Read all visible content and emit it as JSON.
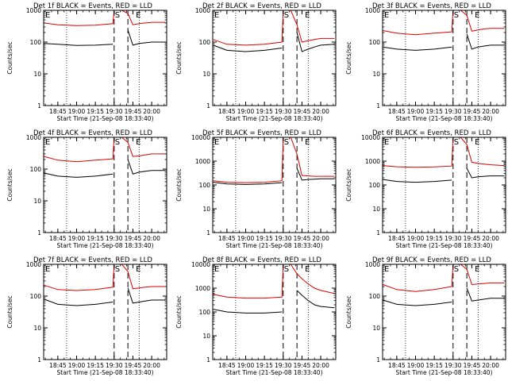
{
  "figure": {
    "xtick_labels": [
      "18:45",
      "19:00",
      "19:15",
      "19:30",
      "19:45",
      "20:00"
    ],
    "ytick_labels": [
      "1",
      "10",
      "100",
      "1000",
      "10000"
    ]
  },
  "colors": {
    "events": "#000000",
    "lld": "#e00000",
    "axes": "#000000",
    "background": "#ffffff"
  },
  "chart_data": [
    {
      "type": "line",
      "title": "Det 1f BLACK = Events, RED = LLD",
      "xlabel": "Start Time (21-Sep-08 18:33:40)",
      "ylabel": "Counts/sec",
      "ylim": [
        1,
        1000
      ],
      "yscale": "log",
      "xlim": [
        "18:33:40",
        "20:12:00"
      ],
      "x": [
        "18:34",
        "18:45",
        "19:00",
        "19:15",
        "19:29",
        "19:30",
        "19:36",
        "19:41",
        "19:45",
        "19:50",
        "19:55",
        "20:00",
        "20:11"
      ],
      "series": [
        {
          "name": "BLACK = Events",
          "values": [
            90,
            85,
            78,
            80,
            85,
            null,
            null,
            240,
            80,
            90,
            95,
            100,
            100
          ]
        },
        {
          "name": "RED = LLD",
          "values": [
            400,
            350,
            330,
            340,
            380,
            1000,
            1000,
            800,
            350,
            380,
            400,
            420,
            420
          ]
        }
      ],
      "markers": {
        "E_left": "E",
        "S": "S",
        "E_right": "E"
      },
      "dashed_lines_at": [
        "19:30",
        "19:41"
      ],
      "dotted_lines_at": [
        "18:52",
        "19:50"
      ]
    },
    {
      "type": "line",
      "title": "Det 2f BLACK = Events, RED = LLD",
      "xlabel": "Start Time (21-Sep-08 18:33:40)",
      "ylabel": "Counts/sec",
      "ylim": [
        1,
        1000
      ],
      "yscale": "log",
      "xlim": [
        "18:33:40",
        "20:12:00"
      ],
      "x": [
        "18:34",
        "18:45",
        "19:00",
        "19:15",
        "19:29",
        "19:30",
        "19:36",
        "19:41",
        "19:45",
        "19:50",
        "19:55",
        "20:00",
        "20:11"
      ],
      "series": [
        {
          "name": "BLACK = Events",
          "values": [
            80,
            55,
            50,
            55,
            65,
            null,
            null,
            200,
            50,
            60,
            70,
            80,
            85
          ]
        },
        {
          "name": "RED = LLD",
          "values": [
            120,
            85,
            80,
            85,
            100,
            1000,
            1000,
            350,
            100,
            110,
            120,
            130,
            130
          ]
        }
      ],
      "markers": {
        "E_left": "E",
        "S": "S",
        "E_right": "E"
      },
      "dashed_lines_at": [
        "19:30",
        "19:41"
      ],
      "dotted_lines_at": [
        "18:52",
        "19:50"
      ]
    },
    {
      "type": "line",
      "title": "Det 3f BLACK = Events, RED = LLD",
      "xlabel": "Start Time (21-Sep-08 18:33:40)",
      "ylabel": "Counts/sec",
      "ylim": [
        1,
        1000
      ],
      "yscale": "log",
      "xlim": [
        "18:33:40",
        "20:12:00"
      ],
      "x": [
        "18:34",
        "18:45",
        "19:00",
        "19:15",
        "19:29",
        "19:30",
        "19:36",
        "19:41",
        "19:45",
        "19:50",
        "19:55",
        "20:00",
        "20:11"
      ],
      "series": [
        {
          "name": "BLACK = Events",
          "values": [
            70,
            60,
            55,
            60,
            70,
            null,
            null,
            180,
            60,
            70,
            75,
            80,
            80
          ]
        },
        {
          "name": "RED = LLD",
          "values": [
            230,
            190,
            170,
            190,
            210,
            1000,
            1000,
            700,
            220,
            240,
            260,
            270,
            270
          ]
        }
      ],
      "markers": {
        "E_left": "E",
        "S": "S",
        "E_right": "E"
      },
      "dashed_lines_at": [
        "19:30",
        "19:41"
      ],
      "dotted_lines_at": [
        "18:52",
        "19:50"
      ]
    },
    {
      "type": "line",
      "title": "Det 4f BLACK = Events, RED = LLD",
      "xlabel": "Start Time (21-Sep-08 18:33:40)",
      "ylabel": "Counts/sec",
      "ylim": [
        1,
        1000
      ],
      "yscale": "log",
      "xlim": [
        "18:33:40",
        "20:12:00"
      ],
      "x": [
        "18:34",
        "18:45",
        "19:00",
        "19:15",
        "19:29",
        "19:30",
        "19:36",
        "19:41",
        "19:45",
        "19:50",
        "19:55",
        "20:00",
        "20:11"
      ],
      "series": [
        {
          "name": "BLACK = Events",
          "values": [
            75,
            60,
            55,
            60,
            70,
            null,
            null,
            200,
            70,
            80,
            85,
            90,
            90
          ]
        },
        {
          "name": "RED = LLD",
          "values": [
            250,
            190,
            170,
            190,
            210,
            1000,
            1000,
            700,
            250,
            260,
            280,
            300,
            300
          ]
        }
      ],
      "markers": {
        "E_left": "E",
        "S": "S",
        "E_right": "E"
      },
      "dashed_lines_at": [
        "19:30",
        "19:41"
      ],
      "dotted_lines_at": [
        "18:52",
        "19:50"
      ]
    },
    {
      "type": "line",
      "title": "Det 5f BLACK = Events, RED = LLD",
      "xlabel": "Start Time (21-Sep-08 18:33:40)",
      "ylabel": "Counts/sec",
      "ylim": [
        1,
        10000
      ],
      "yscale": "log",
      "xlim": [
        "18:33:40",
        "20:12:00"
      ],
      "x": [
        "18:34",
        "18:45",
        "19:00",
        "19:15",
        "19:29",
        "19:30",
        "19:36",
        "19:41",
        "19:45",
        "19:50",
        "19:55",
        "20:00",
        "20:11"
      ],
      "series": [
        {
          "name": "BLACK = Events",
          "values": [
            130,
            110,
            105,
            110,
            125,
            null,
            null,
            500,
            160,
            170,
            175,
            180,
            180
          ]
        },
        {
          "name": "RED = LLD",
          "values": [
            150,
            130,
            125,
            130,
            150,
            10000,
            10000,
            2000,
            250,
            240,
            230,
            230,
            230
          ]
        }
      ],
      "markers": {
        "E_left": "E",
        "S": "S",
        "E_right": "E"
      },
      "dashed_lines_at": [
        "19:30",
        "19:41"
      ],
      "dotted_lines_at": [
        "18:52",
        "19:50"
      ]
    },
    {
      "type": "line",
      "title": "Det 6f BLACK = Events, RED = LLD",
      "xlabel": "Start Time (21-Sep-08 18:33:40)",
      "ylabel": "Counts/sec",
      "ylim": [
        1,
        10000
      ],
      "yscale": "log",
      "xlim": [
        "18:33:40",
        "20:12:00"
      ],
      "x": [
        "18:34",
        "18:45",
        "19:00",
        "19:15",
        "19:29",
        "19:30",
        "19:36",
        "19:41",
        "19:45",
        "19:50",
        "19:55",
        "20:00",
        "20:11"
      ],
      "series": [
        {
          "name": "BLACK = Events",
          "values": [
            170,
            140,
            130,
            140,
            160,
            null,
            null,
            500,
            200,
            220,
            230,
            240,
            240
          ]
        },
        {
          "name": "RED = LLD",
          "values": [
            650,
            580,
            550,
            570,
            620,
            10000,
            10000,
            5000,
            900,
            800,
            750,
            700,
            650
          ]
        }
      ],
      "markers": {
        "E_left": "E",
        "S": "S",
        "E_right": "E"
      },
      "dashed_lines_at": [
        "19:30",
        "19:41"
      ],
      "dotted_lines_at": [
        "18:52",
        "19:50"
      ]
    },
    {
      "type": "line",
      "title": "Det 7f BLACK = Events, RED = LLD",
      "xlabel": "Start Time (21-Sep-08 18:33:40)",
      "ylabel": "Counts/sec",
      "ylim": [
        1,
        1000
      ],
      "yscale": "log",
      "xlim": [
        "18:33:40",
        "20:12:00"
      ],
      "x": [
        "18:34",
        "18:45",
        "19:00",
        "19:15",
        "19:29",
        "19:30",
        "19:36",
        "19:41",
        "19:45",
        "19:50",
        "19:55",
        "20:00",
        "20:11"
      ],
      "series": [
        {
          "name": "BLACK = Events",
          "values": [
            80,
            55,
            50,
            55,
            65,
            null,
            null,
            180,
            60,
            65,
            70,
            75,
            75
          ]
        },
        {
          "name": "RED = LLD",
          "values": [
            220,
            160,
            150,
            160,
            190,
            1000,
            1000,
            600,
            170,
            180,
            190,
            200,
            200
          ]
        }
      ],
      "markers": {
        "E_left": "E",
        "S": "S",
        "E_right": "E"
      },
      "dashed_lines_at": [
        "19:30",
        "19:41"
      ],
      "dotted_lines_at": [
        "18:52",
        "19:50"
      ]
    },
    {
      "type": "line",
      "title": "Det 8f BLACK = Events, RED = LLD",
      "xlabel": "Start Time (21-Sep-08 18:33:40)",
      "ylabel": "Counts/sec",
      "ylim": [
        1,
        10000
      ],
      "yscale": "log",
      "xlim": [
        "18:33:40",
        "20:12:00"
      ],
      "x": [
        "18:34",
        "18:45",
        "19:00",
        "19:15",
        "19:29",
        "19:30",
        "19:36",
        "19:41",
        "19:45",
        "19:50",
        "19:55",
        "20:00",
        "20:11"
      ],
      "series": [
        {
          "name": "BLACK = Events",
          "values": [
            130,
            100,
            90,
            90,
            100,
            null,
            null,
            800,
            500,
            300,
            200,
            170,
            150
          ]
        },
        {
          "name": "RED = LLD",
          "values": [
            550,
            420,
            380,
            380,
            420,
            10000,
            10000,
            4000,
            2500,
            1500,
            1000,
            800,
            600
          ]
        }
      ],
      "markers": {
        "E_left": "E",
        "S": "S",
        "E_right": "E"
      },
      "dashed_lines_at": [
        "19:30",
        "19:41"
      ],
      "dotted_lines_at": [
        "18:52",
        "19:50"
      ]
    },
    {
      "type": "line",
      "title": "Det 9f BLACK = Events, RED = LLD",
      "xlabel": "Start Time (21-Sep-08 18:33:40)",
      "ylabel": "Counts/sec",
      "ylim": [
        1,
        1000
      ],
      "yscale": "log",
      "xlim": [
        "18:33:40",
        "20:12:00"
      ],
      "x": [
        "18:34",
        "18:45",
        "19:00",
        "19:15",
        "19:29",
        "19:30",
        "19:36",
        "19:41",
        "19:45",
        "19:50",
        "19:55",
        "20:00",
        "20:11"
      ],
      "series": [
        {
          "name": "BLACK = Events",
          "values": [
            75,
            55,
            50,
            55,
            65,
            null,
            null,
            180,
            70,
            75,
            80,
            85,
            85
          ]
        },
        {
          "name": "RED = LLD",
          "values": [
            230,
            160,
            140,
            160,
            200,
            1000,
            1000,
            700,
            230,
            240,
            250,
            260,
            260
          ]
        }
      ],
      "markers": {
        "E_left": "E",
        "S": "S",
        "E_right": "E"
      },
      "dashed_lines_at": [
        "19:30",
        "19:41"
      ],
      "dotted_lines_at": [
        "18:52",
        "19:50"
      ]
    }
  ]
}
